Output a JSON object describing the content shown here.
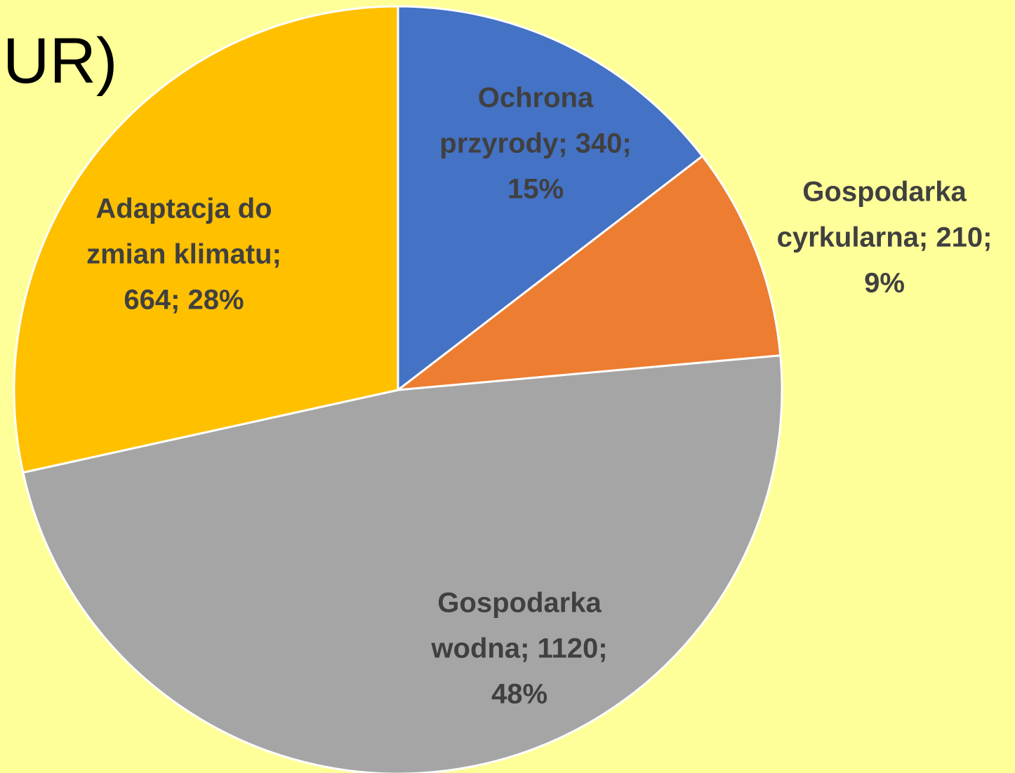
{
  "chart_data": {
    "type": "pie",
    "title": "UR)",
    "categories": [
      "Ochrona przyrody",
      "Gospodarka cyrkularna",
      "Gospodarka wodna",
      "Adaptacja do zmian klimatu"
    ],
    "values": [
      340,
      210,
      1120,
      664
    ],
    "value_labels": [
      [
        "Ochrona",
        "przyrody; 340;",
        "15%"
      ],
      [
        "Gospodarka",
        "cyrkularna; 210;",
        "9%"
      ],
      [
        "Gospodarka",
        "wodna; 1120;",
        "48%"
      ],
      [
        "Adaptacja do",
        "zmian klimatu;",
        "664; 28%"
      ]
    ],
    "colors": [
      "#4472c4",
      "#ed7d31",
      "#a5a5a5",
      "#ffc000"
    ]
  }
}
